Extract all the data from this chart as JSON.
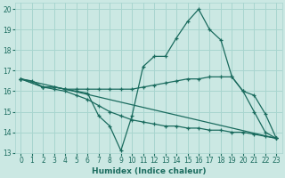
{
  "background_color": "#cbe8e3",
  "grid_color": "#a8d5cf",
  "line_color": "#1a6b5e",
  "xlabel": "Humidex (Indice chaleur)",
  "xlim": [
    -0.5,
    23.5
  ],
  "ylim": [
    13,
    20.3
  ],
  "yticks": [
    13,
    14,
    15,
    16,
    17,
    18,
    19,
    20
  ],
  "xticks": [
    0,
    1,
    2,
    3,
    4,
    5,
    6,
    7,
    8,
    9,
    10,
    11,
    12,
    13,
    14,
    15,
    16,
    17,
    18,
    19,
    20,
    21,
    22,
    23
  ],
  "series": [
    {
      "x": [
        0,
        1,
        2,
        3,
        4,
        5,
        6,
        7,
        8,
        9,
        10,
        11,
        12,
        13,
        14,
        15,
        16,
        17,
        18,
        19,
        20,
        21,
        22,
        23
      ],
      "y": [
        16.6,
        16.5,
        16.2,
        16.2,
        16.1,
        16.0,
        15.9,
        14.8,
        14.3,
        13.1,
        14.8,
        17.2,
        17.7,
        17.7,
        18.6,
        19.4,
        20.0,
        19.0,
        18.5,
        16.7,
        16.0,
        15.0,
        14.0,
        13.7
      ]
    },
    {
      "x": [
        0,
        2,
        3,
        4,
        5,
        6,
        7,
        8,
        9,
        10,
        11,
        12,
        13,
        14,
        15,
        16,
        17,
        18,
        19,
        20,
        21,
        22,
        23
      ],
      "y": [
        16.6,
        16.2,
        16.2,
        16.1,
        16.1,
        16.1,
        16.1,
        16.1,
        16.1,
        16.1,
        16.2,
        16.3,
        16.4,
        16.5,
        16.6,
        16.6,
        16.7,
        16.7,
        16.7,
        16.0,
        15.8,
        14.9,
        13.7
      ]
    },
    {
      "x": [
        0,
        23
      ],
      "y": [
        16.6,
        13.7
      ]
    },
    {
      "x": [
        0,
        2,
        3,
        4,
        5,
        6,
        7,
        8,
        9,
        10,
        11,
        12,
        13,
        14,
        15,
        16,
        17,
        18,
        19,
        20,
        21,
        22,
        23
      ],
      "y": [
        16.6,
        16.2,
        16.1,
        16.0,
        15.8,
        15.6,
        15.3,
        15.0,
        14.8,
        14.6,
        14.5,
        14.4,
        14.3,
        14.3,
        14.2,
        14.2,
        14.1,
        14.1,
        14.0,
        14.0,
        13.9,
        13.8,
        13.7
      ]
    }
  ]
}
